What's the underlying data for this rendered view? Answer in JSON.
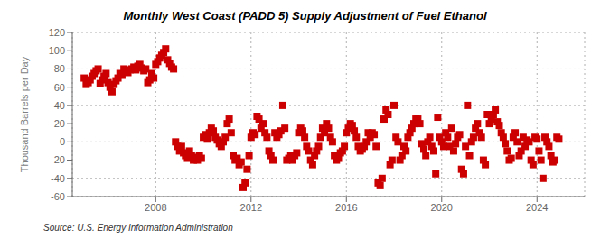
{
  "chart_data": {
    "type": "scatter",
    "title": "Monthly West Coast (PADD 5) Supply Adjustment of Fuel Ethanol",
    "ylabel": "Thousand Barrels per Day",
    "annotations": [
      "Source: U.S. Energy Information Administration"
    ],
    "color": "#cc0000",
    "marker": "square",
    "grid": true,
    "xlim": [
      2004.5,
      2026.0
    ],
    "xticks": [
      2008,
      2012,
      2016,
      2020,
      2024
    ],
    "ylim": [
      -60,
      120
    ],
    "yticks": [
      -60,
      -40,
      -20,
      0,
      20,
      40,
      60,
      80,
      100,
      120
    ],
    "x": [
      2005.0,
      2005.083,
      2005.167,
      2005.25,
      2005.333,
      2005.417,
      2005.5,
      2005.583,
      2005.667,
      2005.75,
      2005.833,
      2005.917,
      2006.0,
      2006.083,
      2006.167,
      2006.25,
      2006.333,
      2006.417,
      2006.5,
      2006.583,
      2006.667,
      2006.75,
      2006.833,
      2006.917,
      2007.0,
      2007.083,
      2007.167,
      2007.25,
      2007.333,
      2007.417,
      2007.5,
      2007.583,
      2007.667,
      2007.75,
      2007.833,
      2007.917,
      2008.0,
      2008.083,
      2008.167,
      2008.25,
      2008.333,
      2008.417,
      2008.5,
      2008.583,
      2008.667,
      2008.75,
      2008.833,
      2008.917,
      2009.0,
      2009.083,
      2009.167,
      2009.25,
      2009.333,
      2009.417,
      2009.5,
      2009.583,
      2009.667,
      2009.75,
      2009.833,
      2009.917,
      2010.0,
      2010.083,
      2010.167,
      2010.25,
      2010.333,
      2010.417,
      2010.5,
      2010.583,
      2010.667,
      2010.75,
      2010.833,
      2010.917,
      2011.0,
      2011.083,
      2011.167,
      2011.25,
      2011.333,
      2011.417,
      2011.5,
      2011.583,
      2011.667,
      2011.75,
      2011.833,
      2011.917,
      2012.0,
      2012.083,
      2012.167,
      2012.25,
      2012.333,
      2012.417,
      2012.5,
      2012.583,
      2012.667,
      2012.75,
      2012.833,
      2012.917,
      2013.0,
      2013.083,
      2013.167,
      2013.25,
      2013.333,
      2013.417,
      2013.5,
      2013.583,
      2013.667,
      2013.75,
      2013.833,
      2013.917,
      2014.0,
      2014.083,
      2014.167,
      2014.25,
      2014.333,
      2014.417,
      2014.5,
      2014.583,
      2014.667,
      2014.75,
      2014.833,
      2014.917,
      2015.0,
      2015.083,
      2015.167,
      2015.25,
      2015.333,
      2015.417,
      2015.5,
      2015.583,
      2015.667,
      2015.75,
      2015.833,
      2015.917,
      2016.0,
      2016.083,
      2016.167,
      2016.25,
      2016.333,
      2016.417,
      2016.5,
      2016.583,
      2016.667,
      2016.75,
      2016.833,
      2016.917,
      2017.0,
      2017.083,
      2017.167,
      2017.25,
      2017.333,
      2017.417,
      2017.5,
      2017.583,
      2017.667,
      2017.75,
      2017.833,
      2017.917,
      2018.0,
      2018.083,
      2018.167,
      2018.25,
      2018.333,
      2018.417,
      2018.5,
      2018.583,
      2018.667,
      2018.75,
      2018.833,
      2018.917,
      2019.0,
      2019.083,
      2019.167,
      2019.25,
      2019.333,
      2019.417,
      2019.5,
      2019.583,
      2019.667,
      2019.75,
      2019.833,
      2019.917,
      2020.0,
      2020.083,
      2020.167,
      2020.25,
      2020.333,
      2020.417,
      2020.5,
      2020.583,
      2020.667,
      2020.75,
      2020.833,
      2020.917,
      2021.0,
      2021.083,
      2021.167,
      2021.25,
      2021.333,
      2021.417,
      2021.5,
      2021.583,
      2021.667,
      2021.75,
      2021.833,
      2021.917,
      2022.0,
      2022.083,
      2022.167,
      2022.25,
      2022.333,
      2022.417,
      2022.5,
      2022.583,
      2022.667,
      2022.75,
      2022.833,
      2022.917,
      2023.0,
      2023.083,
      2023.167,
      2023.25,
      2023.333,
      2023.417,
      2023.5,
      2023.583,
      2023.667,
      2023.75,
      2023.833,
      2023.917,
      2024.0,
      2024.083,
      2024.167,
      2024.25,
      2024.333,
      2024.417,
      2024.5,
      2024.583,
      2024.667,
      2024.75,
      2024.833,
      2024.917
    ],
    "values": [
      70,
      63,
      65,
      68,
      72,
      75,
      78,
      80,
      64,
      68,
      72,
      75,
      65,
      60,
      55,
      63,
      67,
      70,
      75,
      73,
      80,
      78,
      76,
      79,
      80,
      82,
      79,
      83,
      85,
      81,
      78,
      80,
      65,
      68,
      75,
      70,
      85,
      88,
      92,
      95,
      98,
      102,
      90,
      86,
      82,
      80,
      0,
      -5,
      -10,
      -5,
      -12,
      -15,
      -18,
      -10,
      -15,
      -20,
      -17,
      -20,
      -15,
      -18,
      5,
      8,
      3,
      10,
      15,
      12,
      5,
      2,
      -2,
      -5,
      0,
      5,
      20,
      25,
      10,
      -15,
      -20,
      -18,
      -25,
      -22,
      -50,
      -45,
      -30,
      -15,
      5,
      10,
      8,
      28,
      25,
      15,
      20,
      10,
      5,
      -10,
      -15,
      -20,
      10,
      5,
      8,
      12,
      40,
      15,
      -20,
      -18,
      -15,
      -20,
      -15,
      -12,
      10,
      15,
      12,
      5,
      -5,
      -10,
      -20,
      -25,
      -15,
      -10,
      -5,
      5,
      15,
      10,
      20,
      15,
      5,
      0,
      -15,
      -20,
      -18,
      -12,
      -10,
      -5,
      10,
      15,
      20,
      18,
      12,
      5,
      -5,
      -10,
      -8,
      -5,
      0,
      10,
      5,
      10,
      8,
      -5,
      -45,
      -48,
      -40,
      25,
      35,
      30,
      -25,
      -20,
      40,
      5,
      0,
      -20,
      -15,
      -5,
      -10,
      5,
      10,
      15,
      20,
      25,
      25,
      20,
      -2,
      -8,
      -15,
      0,
      5,
      -5,
      -10,
      -35,
      27,
      5,
      0,
      -5,
      10,
      5,
      -5,
      15,
      -10,
      -2,
      5,
      8,
      -30,
      -35,
      -5,
      40,
      -15,
      0,
      5,
      15,
      20,
      10,
      5,
      -20,
      -25,
      30,
      20,
      25,
      30,
      35,
      22,
      18,
      10,
      5,
      -2,
      -10,
      -20,
      -18,
      5,
      10,
      0,
      -15,
      -10,
      5,
      -5,
      2,
      0,
      -20,
      -25,
      5,
      3,
      -10,
      -20,
      -40,
      5,
      0,
      -5,
      -15,
      -22,
      -20,
      5,
      3
    ]
  }
}
